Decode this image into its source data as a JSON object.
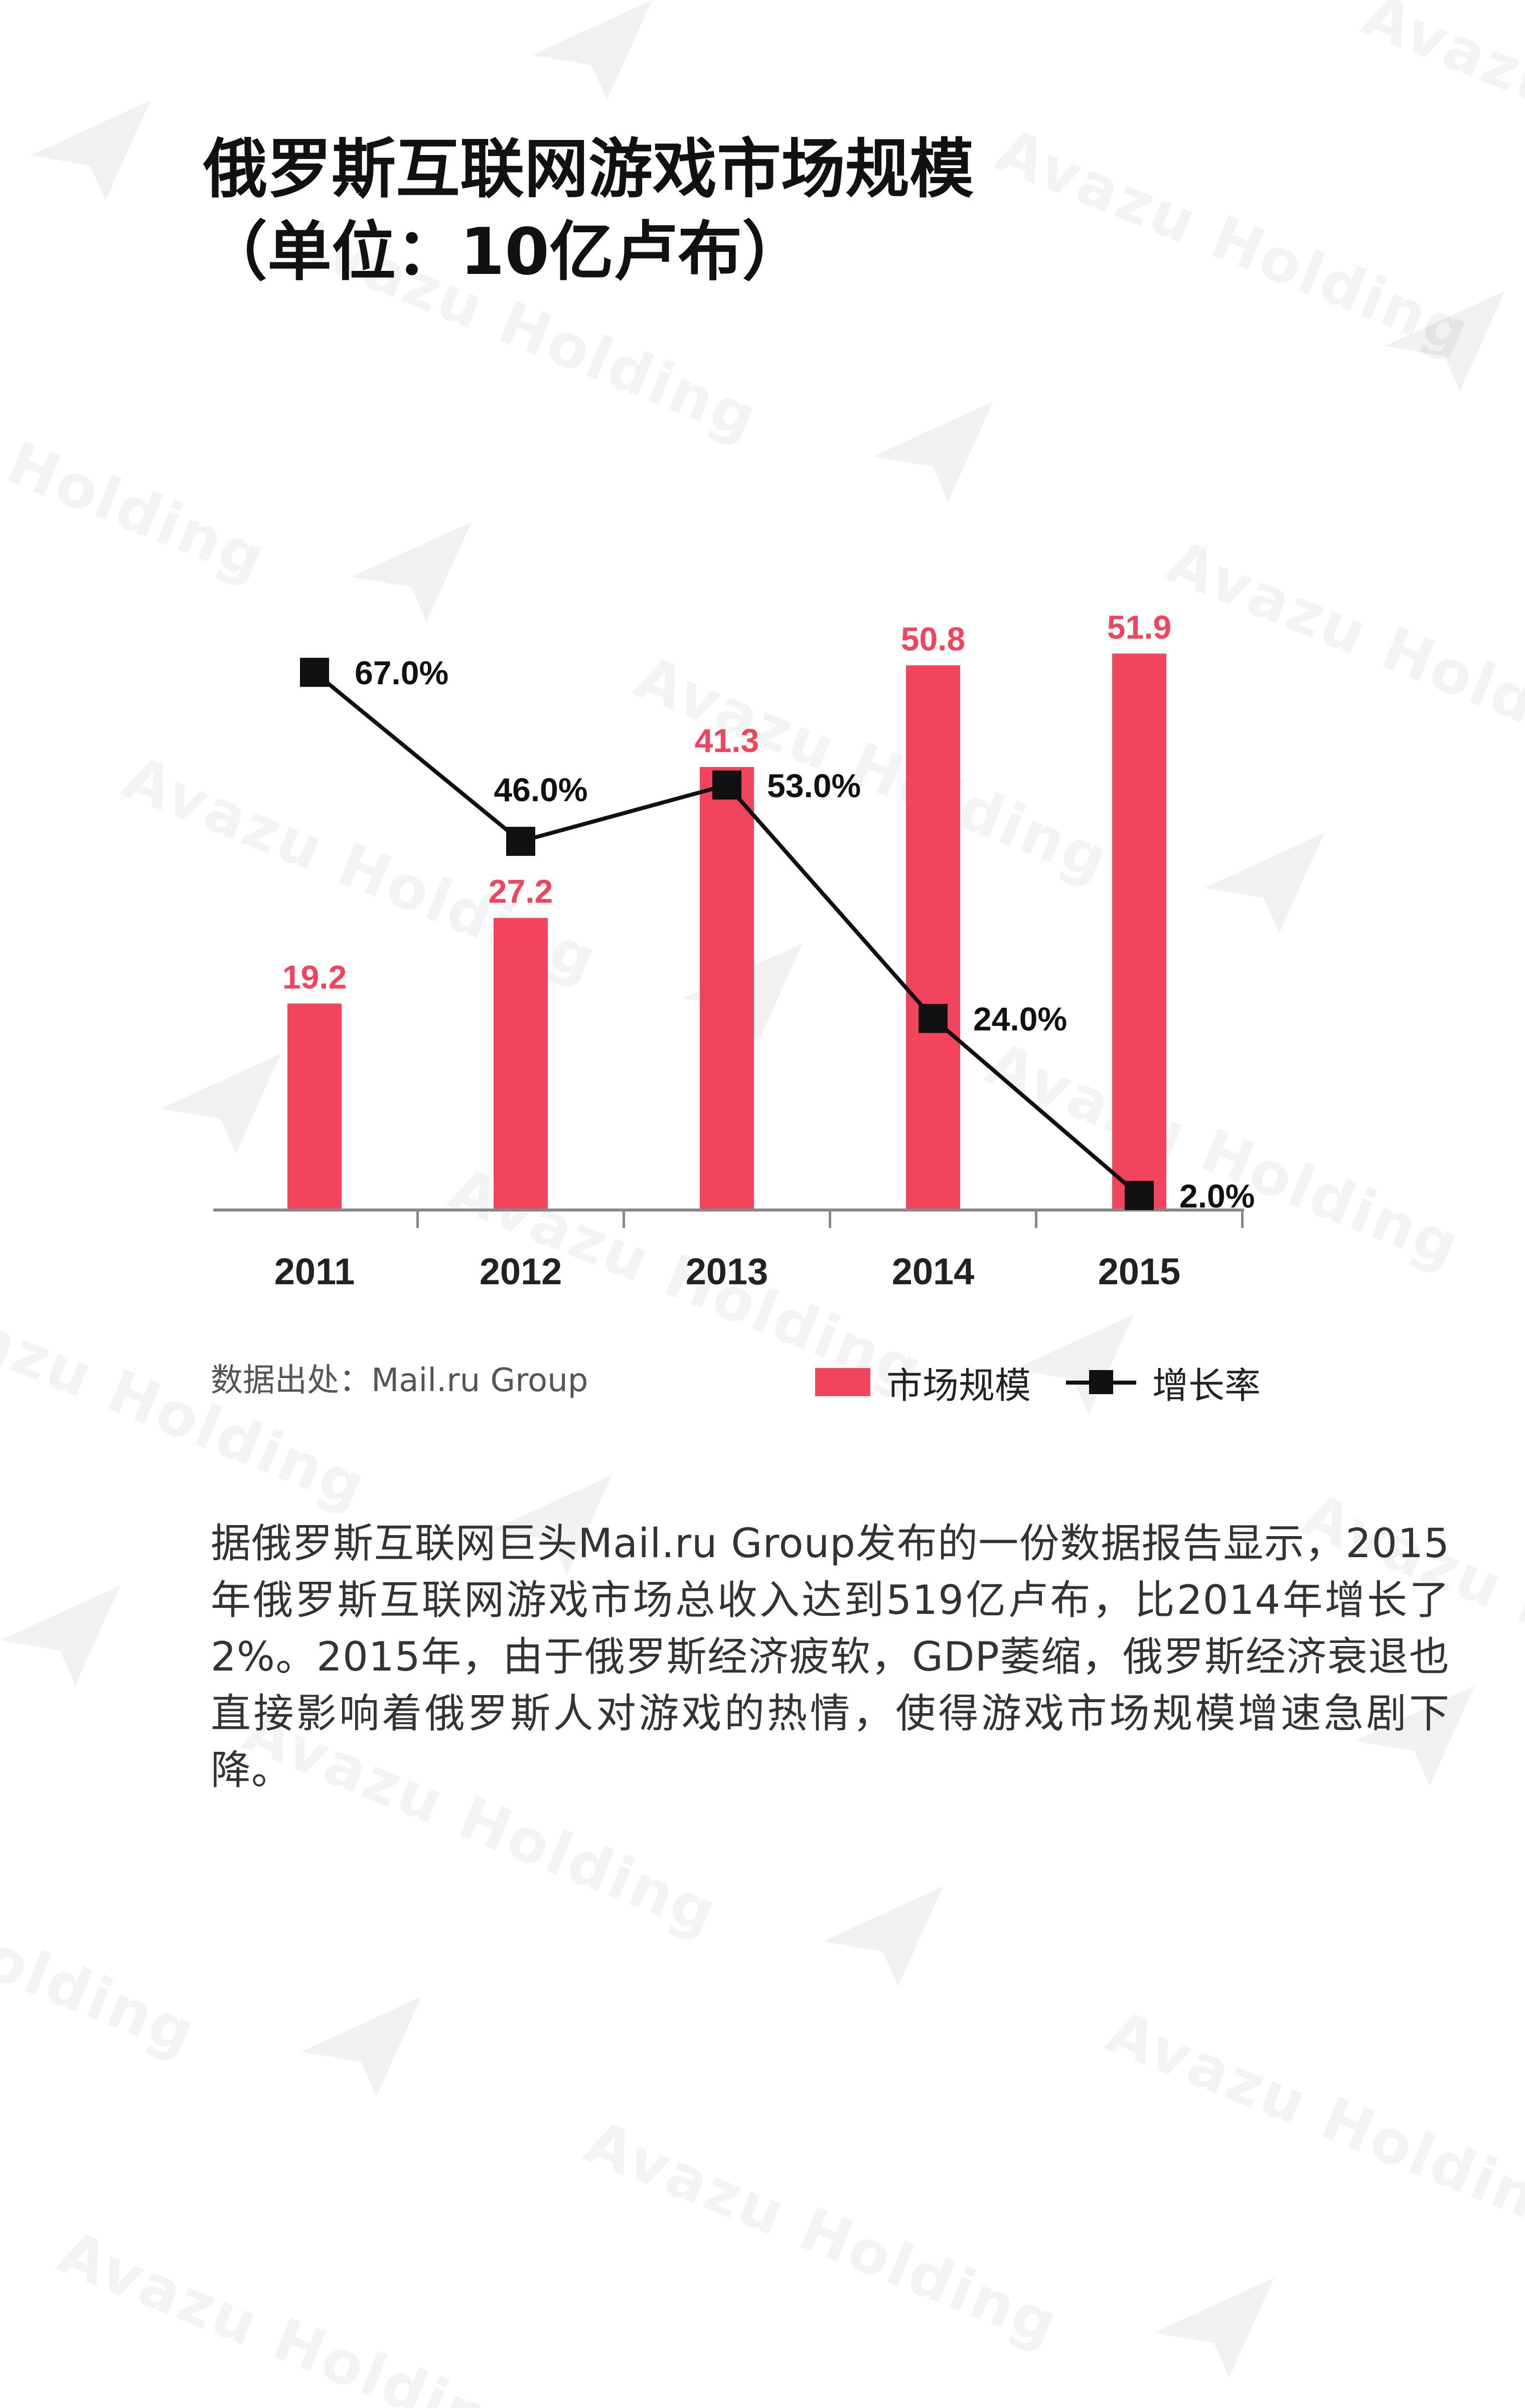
{
  "title": {
    "line1": "俄罗斯互联网游戏市场规模",
    "line2": "（单位：10亿卢布）"
  },
  "watermark": {
    "text": "Avazu Holding"
  },
  "colors": {
    "bar": "#f2445c",
    "line": "#111111",
    "bar_label": "#f2445c",
    "axis": "#888888"
  },
  "chart_data": {
    "type": "bar",
    "categories": [
      "2011",
      "2012",
      "2013",
      "2014",
      "2015"
    ],
    "series": [
      {
        "name": "市场规模",
        "type": "bar",
        "values": [
          19.2,
          27.2,
          41.3,
          50.8,
          51.9
        ],
        "labels": [
          "19.2",
          "27.2",
          "41.3",
          "50.8",
          "51.9"
        ]
      },
      {
        "name": "增长率",
        "type": "line",
        "values": [
          67.0,
          46.0,
          53.0,
          24.0,
          2.0
        ],
        "labels": [
          "67.0%",
          "46.0%",
          "53.0%",
          "24.0%",
          "2.0%"
        ]
      }
    ],
    "bar_ylim": [
      0,
      60
    ],
    "line_ylim": [
      0,
      72
    ],
    "legend_position": "bottom-right",
    "grid": false
  },
  "source": "数据出处：Mail.ru Group",
  "legend": {
    "bar_label": "市场规模",
    "line_label": "增长率"
  },
  "body_paragraph": "据俄罗斯互联网巨头Mail.ru  Group发布的一份数据报告显示，2015年俄罗斯互联网游戏市场总收入达到519亿卢布，比2014年增长了2%。2015年，由于俄罗斯经济疲软，GDP萎缩，俄罗斯经济衰退也直接影响着俄罗斯人对游戏的热情，使得游戏市场规模增速急剧下降。"
}
